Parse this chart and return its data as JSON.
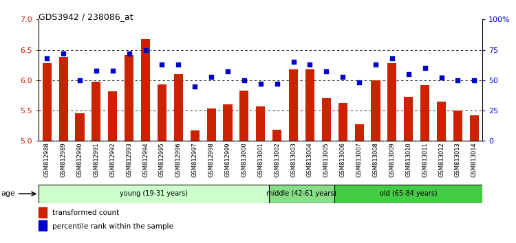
{
  "title": "GDS3942 / 238086_at",
  "samples": [
    "GSM812988",
    "GSM812989",
    "GSM812990",
    "GSM812991",
    "GSM812992",
    "GSM812993",
    "GSM812994",
    "GSM812995",
    "GSM812996",
    "GSM812997",
    "GSM812998",
    "GSM812999",
    "GSM813000",
    "GSM813001",
    "GSM813002",
    "GSM813003",
    "GSM813004",
    "GSM813005",
    "GSM813006",
    "GSM813007",
    "GSM813008",
    "GSM813009",
    "GSM813010",
    "GSM813011",
    "GSM813012",
    "GSM813013",
    "GSM813014"
  ],
  "bar_values": [
    6.28,
    6.38,
    5.45,
    5.97,
    5.82,
    6.42,
    6.68,
    5.93,
    6.1,
    5.17,
    5.53,
    5.6,
    5.83,
    5.57,
    5.18,
    6.18,
    6.18,
    5.7,
    5.63,
    5.28,
    6.0,
    6.28,
    5.73,
    5.92,
    5.65,
    5.5,
    5.42
  ],
  "dot_values": [
    68,
    72,
    50,
    58,
    58,
    72,
    75,
    63,
    63,
    45,
    53,
    57,
    50,
    47,
    47,
    65,
    63,
    57,
    53,
    48,
    63,
    68,
    55,
    60,
    52,
    50,
    50
  ],
  "bar_color": "#cc2200",
  "dot_color": "#0000cc",
  "ylim_left": [
    5.0,
    7.0
  ],
  "ylim_right": [
    0,
    100
  ],
  "yticks_left": [
    5.0,
    5.5,
    6.0,
    6.5,
    7.0
  ],
  "yticks_right": [
    0,
    25,
    50,
    75,
    100
  ],
  "ytick_labels_right": [
    "0",
    "25",
    "50",
    "75",
    "100%"
  ],
  "grid_values": [
    5.5,
    6.0,
    6.5
  ],
  "groups": [
    {
      "label": "young (19-31 years)",
      "start": 0,
      "end": 14,
      "color": "#ccffcc"
    },
    {
      "label": "middle (42-61 years)",
      "start": 14,
      "end": 18,
      "color": "#88dd88"
    },
    {
      "label": "old (65-84 years)",
      "start": 18,
      "end": 27,
      "color": "#44cc44"
    }
  ],
  "age_label": "age",
  "legend_bar_label": "transformed count",
  "legend_dot_label": "percentile rank within the sample",
  "base_value": 5.0,
  "xtick_bg": "#cccccc"
}
